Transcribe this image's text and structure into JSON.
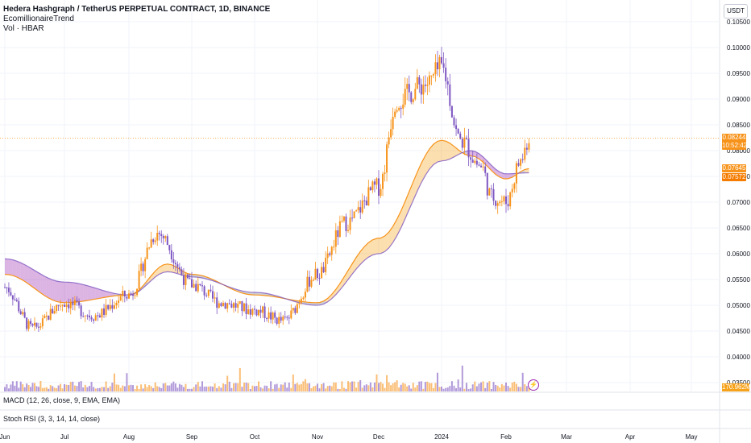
{
  "header": {
    "symbol_line": "Hedera Hashgraph / TetherUS PERPETUAL CONTRACT, 1D, BINANCE",
    "indicator": "EcomillionaireTrend",
    "volume_label": "Vol · HBAR",
    "currency_button": "USDT"
  },
  "price_tags": {
    "last_price": "0.08244",
    "countdown": "10:52:42",
    "fast_ma": "0.07645",
    "slow_ma": "0.07572",
    "volume": "170.962M"
  },
  "panes": {
    "macd_label": "MACD (12, 26, close, 9, EMA, EMA)",
    "stoch_label": "Stoch RSI (3, 3, 14, 14, close)"
  },
  "colors": {
    "up": "#f7931a",
    "down": "#7e57c2",
    "bull_cloud": "#f7a21b",
    "bear_cloud": "#9c27b0",
    "neutral_cloud": "#787b86"
  },
  "chart_data": {
    "type": "candlestick",
    "title": "Hedera Hashgraph / TetherUS PERPETUAL CONTRACT, 1D, BINANCE",
    "y_ticks": [
      "0.10500",
      "0.10000",
      "0.09500",
      "0.09000",
      "0.08500",
      "0.08000",
      "0.07500",
      "0.07000",
      "0.06500",
      "0.06000",
      "0.05500",
      "0.05000",
      "0.04500",
      "0.04000",
      "0.03500"
    ],
    "x_ticks": [
      "Jun",
      "Jul",
      "Aug",
      "Sep",
      "Oct",
      "Nov",
      "Dec",
      "2024",
      "Feb",
      "Mar",
      "Apr",
      "May"
    ],
    "ylim": [
      0.035,
      0.105
    ],
    "series": [
      {
        "name": "price",
        "points": [
          [
            "Jun",
            0.0535
          ],
          [
            "Jun 15",
            0.0455
          ],
          [
            "Jul",
            0.0505
          ],
          [
            "Jul 15",
            0.048
          ],
          [
            "Aug",
            0.052
          ],
          [
            "Aug 15",
            0.064
          ],
          [
            "Sep",
            0.054
          ],
          [
            "Sep 15",
            0.0505
          ],
          [
            "Oct",
            0.049
          ],
          [
            "Oct 15",
            0.047
          ],
          [
            "Nov",
            0.056
          ],
          [
            "Nov 15",
            0.066
          ],
          [
            "Dec",
            0.073
          ],
          [
            "Dec 10",
            0.09
          ],
          [
            "Dec 25",
            0.093
          ],
          [
            "2024",
            0.096
          ],
          [
            "Jan 10",
            0.082
          ],
          [
            "Jan 20",
            0.077
          ],
          [
            "Jan 25",
            0.071
          ],
          [
            "Feb",
            0.07
          ],
          [
            "Feb 8",
            0.078
          ],
          [
            "Feb 12",
            0.0824
          ]
        ]
      },
      {
        "name": "fast MA",
        "points": [
          [
            "Jun",
            0.056
          ],
          [
            "Jul",
            0.0505
          ],
          [
            "Aug",
            0.052
          ],
          [
            "Aug 20",
            0.058
          ],
          [
            "Sep",
            0.056
          ],
          [
            "Oct",
            0.052
          ],
          [
            "Nov",
            0.0505
          ],
          [
            "Dec",
            0.063
          ],
          [
            "2024",
            0.082
          ],
          [
            "Jan 15",
            0.079
          ],
          [
            "Feb",
            0.0745
          ],
          [
            "Feb 12",
            0.0765
          ]
        ]
      },
      {
        "name": "slow MA",
        "points": [
          [
            "Jun",
            0.059
          ],
          [
            "Jul",
            0.0545
          ],
          [
            "Aug",
            0.052
          ],
          [
            "Aug 20",
            0.0565
          ],
          [
            "Sep",
            0.0555
          ],
          [
            "Oct",
            0.0525
          ],
          [
            "Nov",
            0.05
          ],
          [
            "Dec",
            0.06
          ],
          [
            "2024",
            0.078
          ],
          [
            "Jan 15",
            0.08
          ],
          [
            "Feb",
            0.0755
          ],
          [
            "Feb 12",
            0.0757
          ]
        ]
      }
    ],
    "grid": true
  }
}
